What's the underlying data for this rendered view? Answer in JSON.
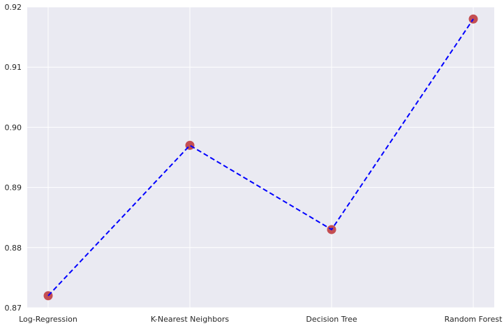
{
  "chart_data": {
    "type": "line",
    "categories": [
      "Log-Regression",
      "K-Nearest Neighbors",
      "Decision Tree",
      "Random Forest"
    ],
    "series": [
      {
        "values": [
          0.872,
          0.897,
          0.883,
          0.918
        ],
        "line_color": "#0000ff",
        "line_style": "dashed",
        "marker_color": "#c44e52"
      }
    ],
    "ylim": [
      0.87,
      0.92
    ],
    "yticks": [
      "0.87",
      "0.88",
      "0.89",
      "0.90",
      "0.91",
      "0.92"
    ],
    "grid": true,
    "background_color": "#eaeaf2",
    "grid_color": "#ffffff",
    "title": "",
    "xlabel": "",
    "ylabel": ""
  }
}
